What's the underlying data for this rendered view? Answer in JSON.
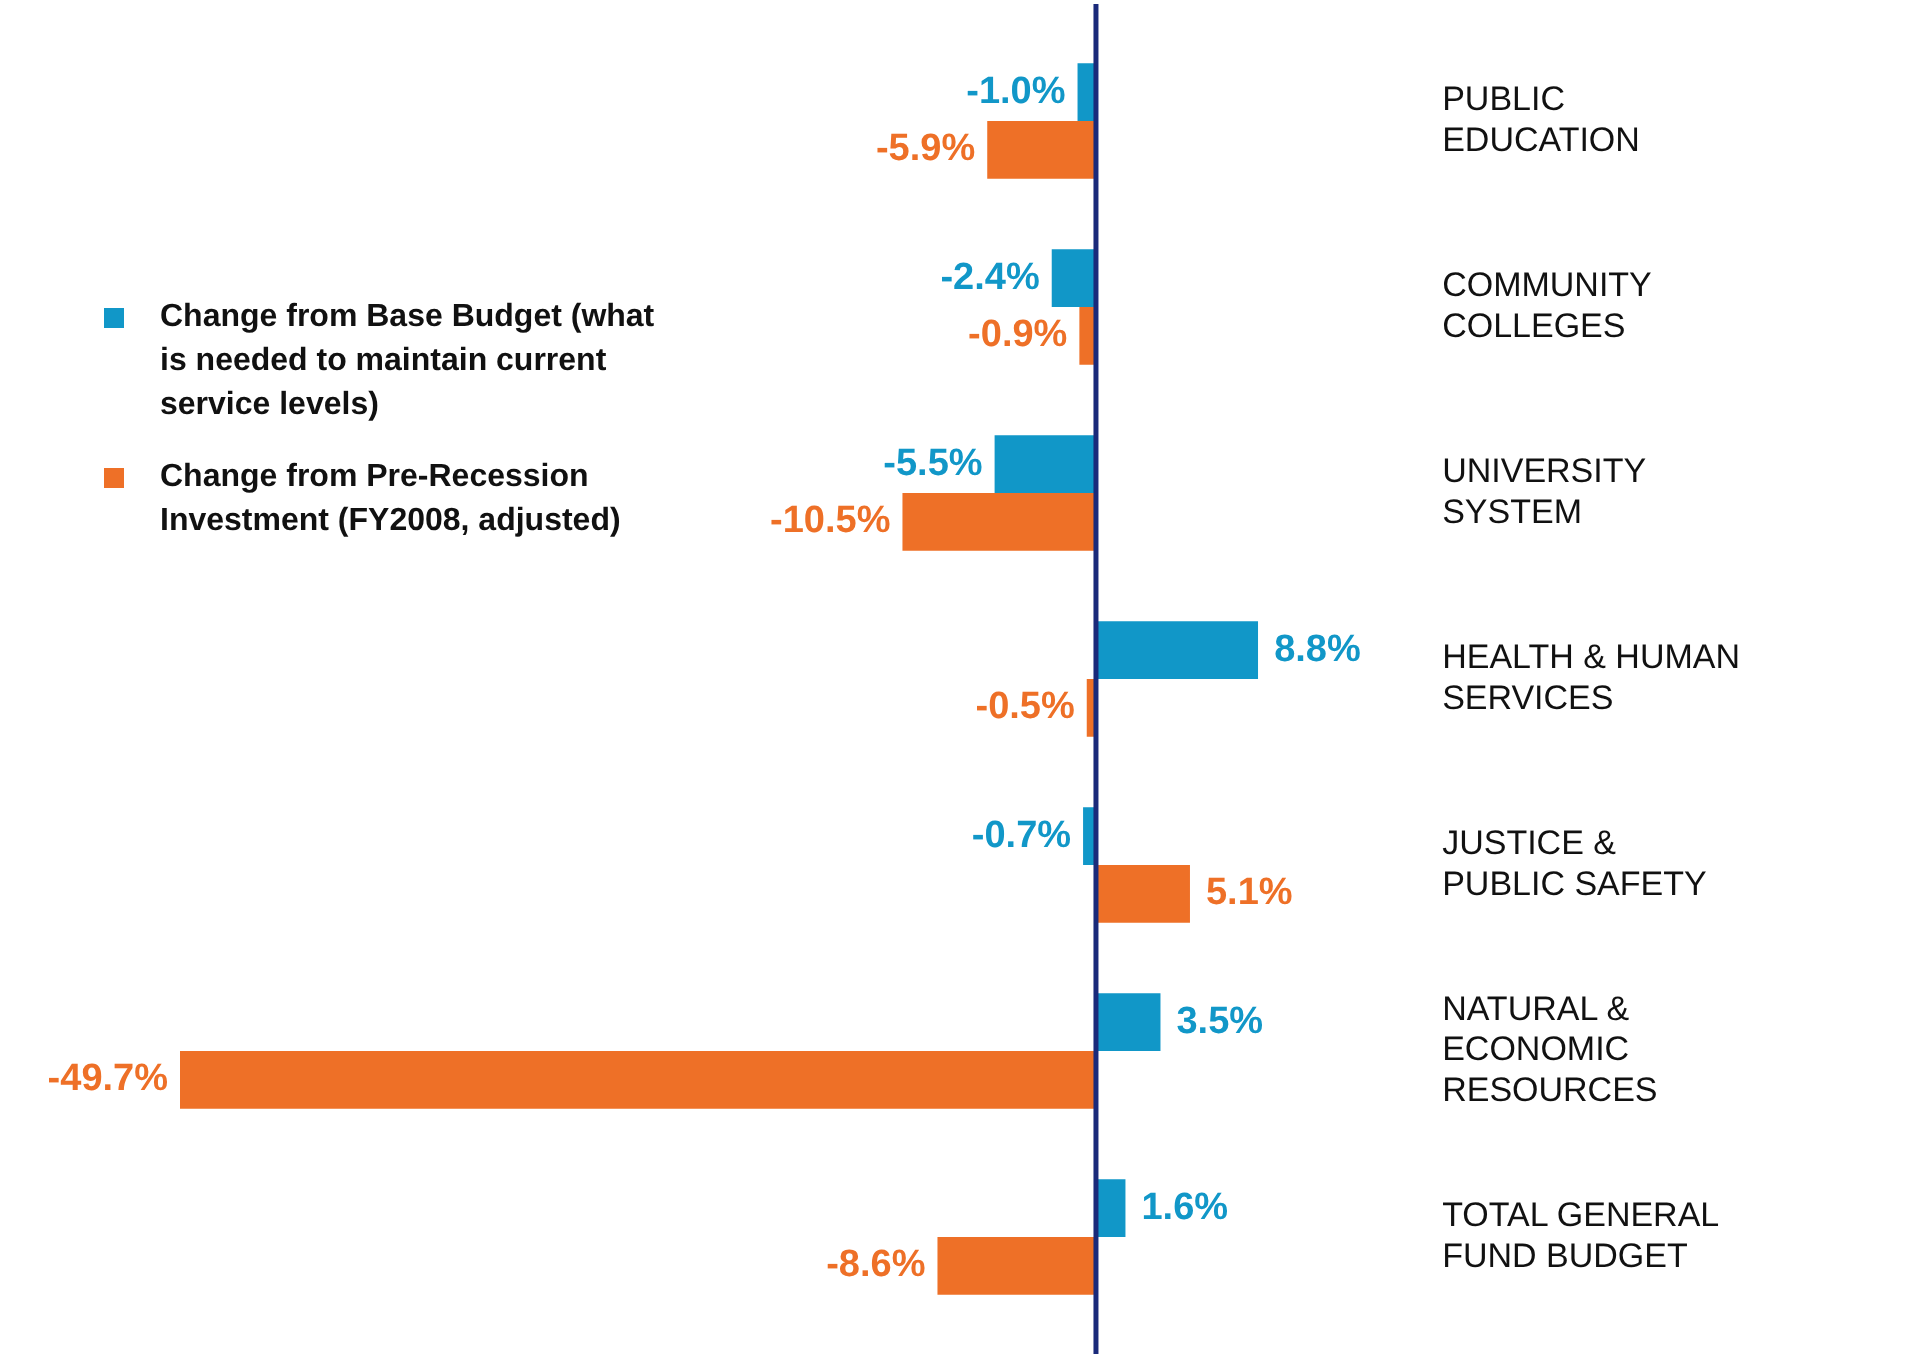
{
  "chart_data": {
    "type": "bar",
    "orientation": "horizontal",
    "legend": "left",
    "ref_lines": [
      {
        "axis": "x",
        "value": 0,
        "color": "#1a2a7a"
      }
    ],
    "categories": [
      "PUBLIC EDUCATION",
      "COMMUNITY COLLEGES",
      "UNIVERSITY SYSTEM",
      "HEALTH & HUMAN SERVICES",
      "JUSTICE & PUBLIC SAFETY",
      "NATURAL & ECONOMIC RESOURCES",
      "TOTAL GENERAL FUND BUDGET"
    ],
    "series": [
      {
        "name": "Change from Base Budget (what is needed to maintain current service levels)",
        "color": "#1197c8",
        "values": [
          -1.0,
          -2.4,
          -5.5,
          8.8,
          -0.7,
          3.5,
          1.6
        ],
        "value_labels": [
          "-1.0%",
          "-2.4%",
          "-5.5%",
          "8.8%",
          "-0.7%",
          "3.5%",
          "1.6%"
        ]
      },
      {
        "name": "Change from Pre-Recession Investment (FY2008, adjusted)",
        "color": "#ee7027",
        "values": [
          -5.9,
          -0.9,
          -10.5,
          -0.5,
          5.1,
          -49.7,
          -8.6
        ],
        "value_labels": [
          "-5.9%",
          "-0.9%",
          "-10.5%",
          "-0.5%",
          "5.1%",
          "-49.7%",
          "-8.6%"
        ]
      }
    ]
  }
}
